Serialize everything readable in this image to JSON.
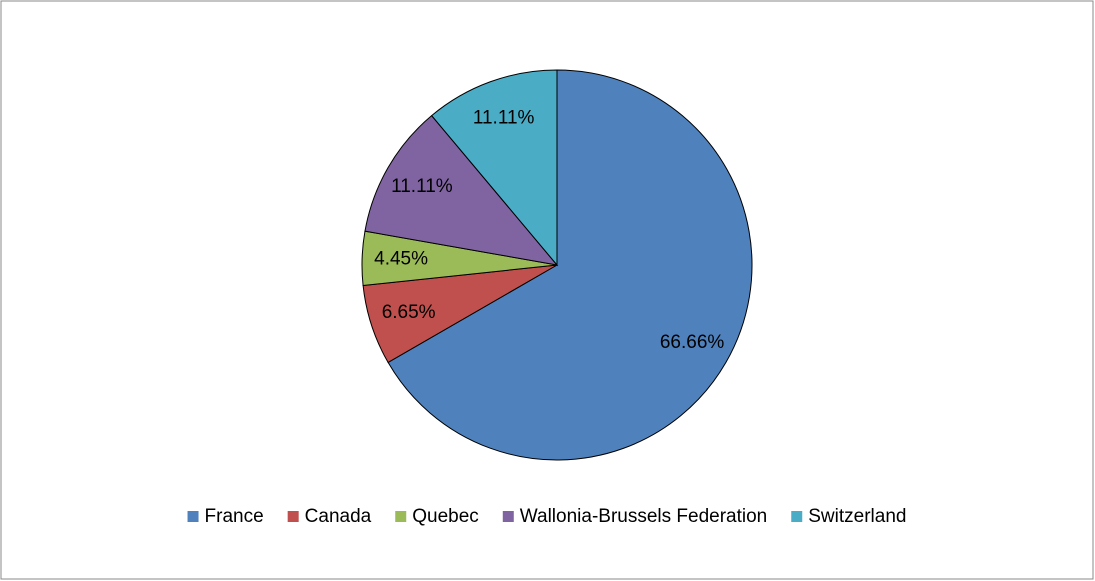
{
  "chart_data": {
    "type": "pie",
    "categories": [
      "France",
      "Canada",
      "Quebec",
      "Wallonia-Brussels Federation",
      "Switzerland"
    ],
    "values": [
      66.66,
      6.65,
      4.45,
      11.11,
      11.11
    ],
    "value_labels": [
      "66.66%",
      "6.65%",
      "4.45%",
      "11.11%",
      "11.11%"
    ],
    "colors": [
      "#4f81bd",
      "#c0504d",
      "#9bbb59",
      "#8064a2",
      "#4bacc6"
    ],
    "legend": "bottom"
  }
}
